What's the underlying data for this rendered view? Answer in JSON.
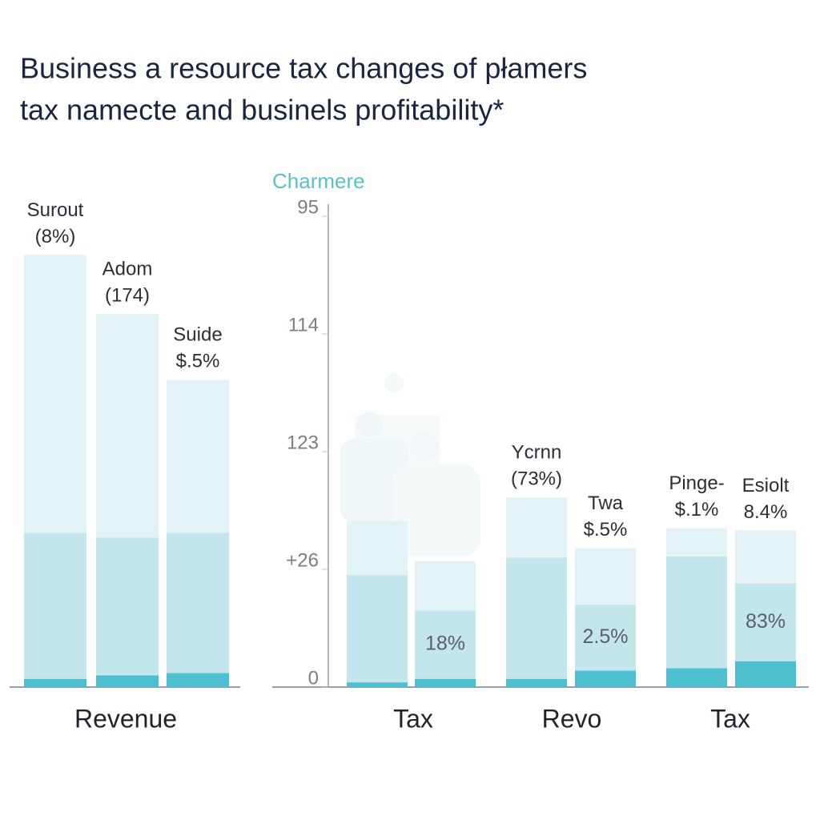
{
  "title_lines": [
    "Business a resource tax changes of płamers",
    "tax namecte and businels profitability*"
  ],
  "chart_data": [
    {
      "type": "stacked-bar",
      "ylim": [
        0,
        4
      ],
      "series": [
        {
          "color": "#4dbfd0",
          "values": [
            0.07,
            0.1,
            0.12
          ]
        },
        {
          "color": "#c3e5ec",
          "values": [
            1.24,
            1.17,
            1.19
          ]
        },
        {
          "color": "#e3f2f6",
          "values": [
            2.36,
            1.9,
            1.3
          ]
        }
      ],
      "bar_labels": [
        [
          "Surout",
          "(8%)"
        ],
        [
          "Adom",
          "(174)"
        ],
        [
          "Suide",
          "$.5%"
        ]
      ],
      "group_labels": [
        "Revenue"
      ]
    },
    {
      "type": "stacked-bar",
      "subtitle": "Charmere",
      "ylim": [
        0,
        4
      ],
      "yticks": [
        0,
        {
          "value": 1,
          "label": "+26"
        },
        {
          "value": 2,
          "label": "123"
        },
        {
          "value": 3,
          "label": "114"
        },
        {
          "value": 4,
          "label": "95"
        }
      ],
      "series": [
        {
          "color": "#4dbfd0",
          "values": [
            0.04,
            0.07,
            0.07,
            0.14,
            0.16,
            0.22
          ]
        },
        {
          "color": "#c3e5ec",
          "values": [
            0.91,
            0.58,
            1.03,
            0.56,
            0.95,
            0.66
          ]
        },
        {
          "color": "#e3f2f6",
          "values": [
            0.46,
            0.42,
            0.51,
            0.48,
            0.24,
            0.45
          ]
        }
      ],
      "bar_labels": [
        null,
        null,
        [
          "Ycrnn",
          "(73%)"
        ],
        [
          "Twa",
          "$.5%"
        ],
        [
          "Pinge-",
          "$.1%"
        ],
        [
          "Esiolt",
          "8.4%"
        ]
      ],
      "inner_labels": [
        null,
        "18%",
        null,
        "2.5%",
        null,
        "83%"
      ],
      "group_labels": [
        "Tax",
        "Revo",
        "Tax"
      ]
    }
  ]
}
